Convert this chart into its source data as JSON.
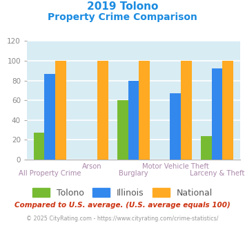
{
  "title_line1": "2019 Tolono",
  "title_line2": "Property Crime Comparison",
  "title_color": "#1b8be0",
  "categories": [
    "All Property Crime",
    "Arson",
    "Burglary",
    "Motor Vehicle Theft",
    "Larceny & Theft"
  ],
  "tolono": [
    27,
    0,
    60,
    0,
    24
  ],
  "illinois": [
    87,
    0,
    80,
    67,
    92
  ],
  "national": [
    100,
    100,
    100,
    100,
    100
  ],
  "tolono_color": "#77bb33",
  "illinois_color": "#3388ee",
  "national_color": "#ffaa22",
  "ylim": [
    0,
    120
  ],
  "yticks": [
    0,
    20,
    40,
    60,
    80,
    100,
    120
  ],
  "background_color": "#d8ecf3",
  "grid_color": "#ffffff",
  "xlabel_color": "#aa88aa",
  "legend_label_tolono": "Tolono",
  "legend_label_illinois": "Illinois",
  "legend_label_national": "National",
  "footnote1": "Compared to U.S. average. (U.S. average equals 100)",
  "footnote2": "© 2025 CityRating.com - https://www.cityrating.com/crime-statistics/",
  "footnote1_color": "#cc3311",
  "footnote2_color": "#999999"
}
